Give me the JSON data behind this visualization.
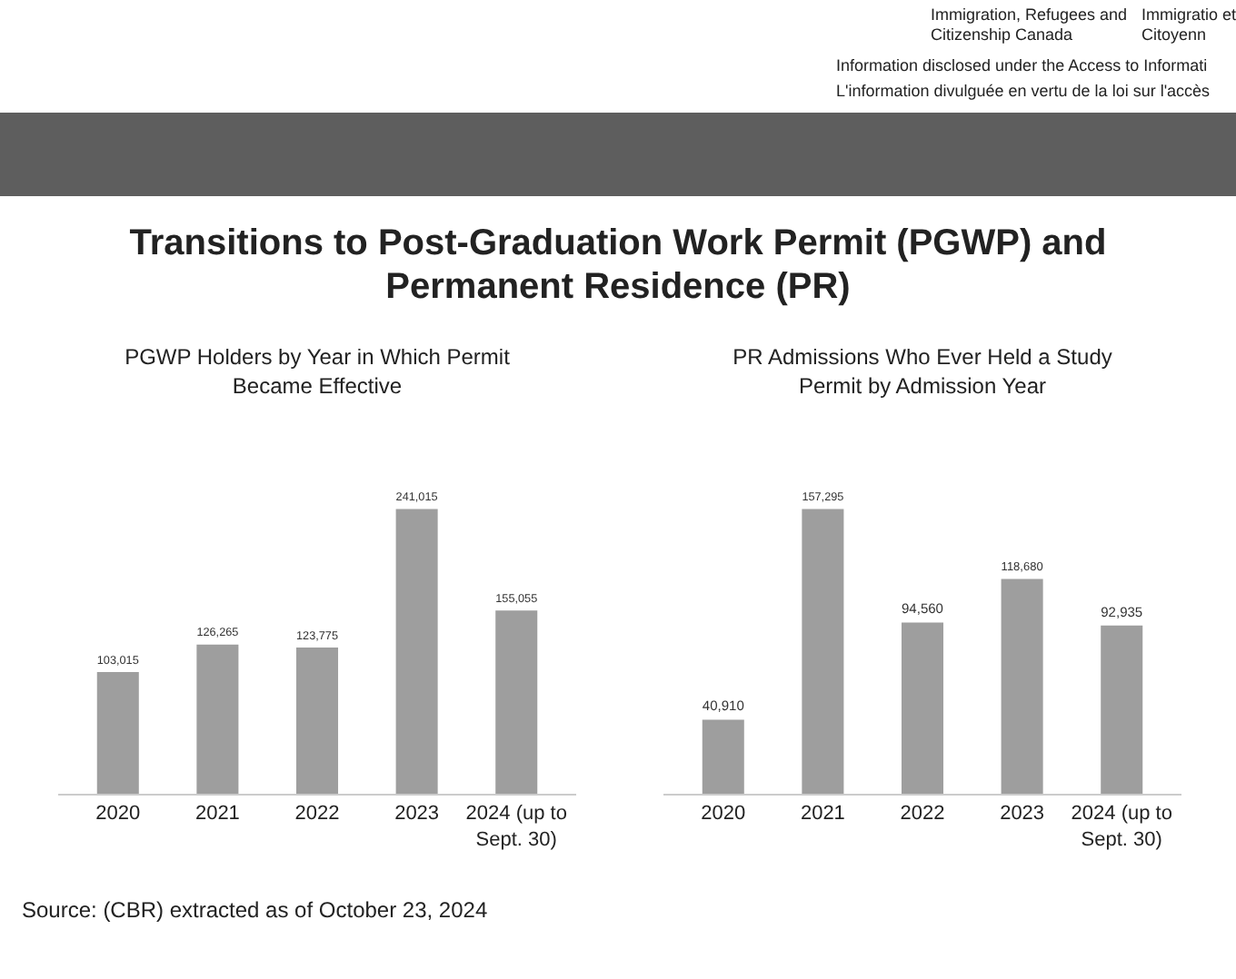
{
  "chart_data": [
    {
      "type": "bar",
      "title": "PGWP Holders by Year in Which Permit Became Effective",
      "categories": [
        "2020",
        "2021",
        "2022",
        "2023",
        "2024 (up to Sept. 30)"
      ],
      "values": [
        103015,
        126265,
        123775,
        241015,
        155055
      ],
      "value_labels": [
        "103,015",
        "126,265",
        "123,775",
        "241,015",
        "155,055"
      ],
      "color": "#9e9e9e",
      "annotations": [
        "Immigration, Refugees and Citizenship Canada",
        "Immigratio et Citoyenn",
        "Information disclosed under the Access to Informati",
        "L'information divulguée en vertu de la loi sur l'accès",
        "Transitions to Post-Graduation Work Permit (PGWP) and Permanent Residence (PR)",
        "Source: (CBR) extracted as of October 23, 2024"
      ]
    },
    {
      "type": "bar",
      "title": "PR Admissions Who Ever Held a Study Permit by Admission Year",
      "categories": [
        "2020",
        "2021",
        "2022",
        "2023",
        "2024 (up to Sept. 30)"
      ],
      "values": [
        40910,
        157295,
        94560,
        118680,
        92935
      ],
      "value_labels": [
        "40,910",
        "157,295",
        "94,560",
        "118,680",
        "92,935"
      ],
      "color": "#9e9e9e"
    }
  ]
}
